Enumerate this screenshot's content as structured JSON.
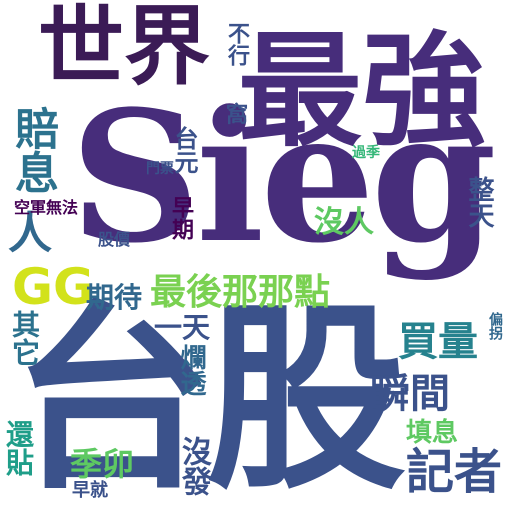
{
  "words": {
    "w01": {
      "text": "Sieg",
      "color": "#472d7b"
    },
    "w02": {
      "text": "台股",
      "color": "#3b528b"
    },
    "w03": {
      "text": "最強",
      "color": "#472d7b"
    },
    "w04": {
      "text": "世界",
      "color": "#3b1b56"
    },
    "w05": {
      "text": "最後那那點",
      "color": "#7ad151"
    },
    "w06": {
      "text": "GG",
      "color": "#d2e21b"
    },
    "w07": {
      "text": "期待",
      "color": "#31688e"
    },
    "w08": {
      "text": "賠息",
      "color": "#2c728e"
    },
    "w09": {
      "text": "人",
      "color": "#31688e"
    },
    "w10": {
      "text": "買量",
      "color": "#26828e"
    },
    "w11": {
      "text": "瞬間",
      "color": "#3b528b"
    },
    "w12": {
      "text": "記者",
      "color": "#3b528b"
    },
    "w13": {
      "text": "填息",
      "color": "#5ec962"
    },
    "w14": {
      "text": "沒人",
      "color": "#5ec962"
    },
    "w15": {
      "text": "整天",
      "color": "#3b528b"
    },
    "w16": {
      "text": "其它",
      "color": "#2c728e"
    },
    "w17": {
      "text": "沒發",
      "color": "#3b528b"
    },
    "w18": {
      "text": "爛透",
      "color": "#31688e"
    },
    "w19": {
      "text": "一天",
      "color": "#3b528b"
    },
    "w20": {
      "text": "季卯",
      "color": "#5ec962"
    },
    "w21": {
      "text": "還貼",
      "color": "#1f9e89"
    },
    "w22": {
      "text": "早就",
      "color": "#3b528b"
    },
    "w23": {
      "text": "早期",
      "color": "#440154"
    },
    "w24": {
      "text": "台元",
      "color": "#3b528b"
    },
    "w25": {
      "text": "股價",
      "color": "#3b528b"
    },
    "w26": {
      "text": "空軍無法",
      "color": "#440154"
    },
    "w27": {
      "text": "門票",
      "color": "#3b528b"
    },
    "w28": {
      "text": "過季",
      "color": "#35b779"
    },
    "w29": {
      "text": "偏拐",
      "color": "#31688e"
    },
    "w30": {
      "text": "不行",
      "color": "#3b528b"
    },
    "w31": {
      "text": "窩",
      "color": "#3b528b"
    }
  }
}
